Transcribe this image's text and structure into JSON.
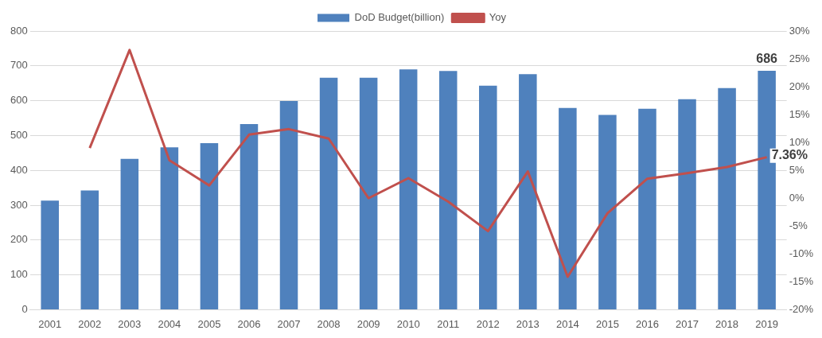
{
  "chart_data": {
    "type": "bar",
    "categories": [
      "2001",
      "2002",
      "2003",
      "2004",
      "2005",
      "2006",
      "2007",
      "2008",
      "2009",
      "2010",
      "2011",
      "2012",
      "2013",
      "2014",
      "2015",
      "2016",
      "2017",
      "2018",
      "2019"
    ],
    "series": [
      {
        "name": "DoD Budget(billion)",
        "color": "#4f81bd",
        "values": [
          313,
          342,
          433,
          466,
          478,
          533,
          599,
          666,
          666,
          690,
          685,
          643,
          676,
          579,
          559,
          577,
          604,
          636,
          686
        ],
        "value_labels": [
          null,
          null,
          null,
          null,
          null,
          null,
          null,
          null,
          null,
          null,
          null,
          null,
          null,
          null,
          null,
          null,
          null,
          null,
          "686"
        ]
      },
      {
        "name": "Yoy",
        "type": "line",
        "axis": "y2",
        "color": "#c0504d",
        "values": [
          null,
          9.0,
          26.6,
          6.8,
          2.3,
          11.4,
          12.4,
          10.7,
          0.0,
          3.6,
          -0.6,
          -5.9,
          4.8,
          -14.1,
          -2.7,
          3.5,
          4.5,
          5.6,
          7.36
        ],
        "value_labels": [
          null,
          null,
          null,
          null,
          null,
          null,
          null,
          null,
          null,
          null,
          null,
          null,
          null,
          null,
          null,
          null,
          null,
          null,
          "7.36%"
        ]
      }
    ],
    "ylim": [
      0,
      800
    ],
    "yticks": [
      0,
      100,
      200,
      300,
      400,
      500,
      600,
      700,
      800
    ],
    "y2lim": [
      -20,
      30
    ],
    "y2ticks": [
      {
        "value": -20,
        "label": "-20%"
      },
      {
        "value": -15,
        "label": "-15%"
      },
      {
        "value": -10,
        "label": "-10%"
      },
      {
        "value": -5,
        "label": "-5%"
      },
      {
        "value": 0,
        "label": "0%"
      },
      {
        "value": 5,
        "label": "5%"
      },
      {
        "value": 10,
        "label": "10%"
      },
      {
        "value": 15,
        "label": "15%"
      },
      {
        "value": 20,
        "label": "20%"
      },
      {
        "value": 25,
        "label": "25%"
      },
      {
        "value": 30,
        "label": "30%"
      }
    ],
    "grid": "y",
    "legend": "top",
    "marker": "none",
    "line_style": "solid"
  }
}
